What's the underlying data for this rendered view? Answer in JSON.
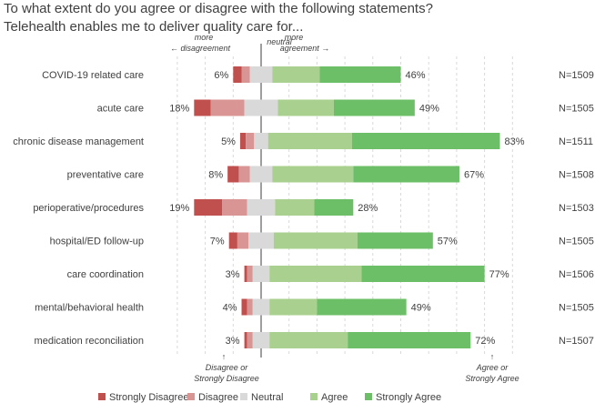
{
  "title_line1": "To what extent do you agree or disagree with the following statements?",
  "title_line2": "Telehealth enables me to deliver quality care for...",
  "annotations": {
    "more_disagreement_1": "more",
    "more_disagreement_2": "← disagreement",
    "neutral": "neutral",
    "more_agreement_1": "more",
    "more_agreement_2": "agreement →",
    "disagree_bottom_1": "Disagree or",
    "disagree_bottom_2": "Strongly Disagree",
    "agree_bottom_1": "Agree or",
    "agree_bottom_2": "Strongly Agree",
    "up_arrow": "↑"
  },
  "colors": {
    "Strongly Disagree": "#c0504d",
    "Disagree": "#d99594",
    "Neutral": "#d9d9d9",
    "Agree": "#a9d08e",
    "Strongly Agree": "#6cbf66"
  },
  "chart_data": {
    "type": "bar",
    "orientation": "horizontal-diverging-stacked",
    "categories": [
      "COVID-19 related care",
      "acute care",
      "chronic disease management",
      "preventative care",
      "perioperative/procedures",
      "hospital/ED follow-up",
      "care coordination",
      "mental/behavioral health",
      "medication reconciliation"
    ],
    "series": [
      {
        "name": "Strongly Disagree",
        "values": [
          3,
          6,
          2,
          4,
          10,
          3,
          1,
          2,
          1
        ]
      },
      {
        "name": "Disagree",
        "values": [
          3,
          12,
          3,
          4,
          9,
          4,
          2,
          2,
          2
        ]
      },
      {
        "name": "Neutral",
        "values": [
          8,
          12,
          5,
          8,
          10,
          9,
          6,
          6,
          6
        ]
      },
      {
        "name": "Agree",
        "values": [
          17,
          20,
          30,
          29,
          14,
          30,
          33,
          17,
          28
        ]
      },
      {
        "name": "Strongly Agree",
        "values": [
          29,
          29,
          53,
          38,
          14,
          27,
          44,
          32,
          44
        ]
      }
    ],
    "disagree_labels": [
      "6%",
      "18%",
      "5%",
      "8%",
      "19%",
      "7%",
      "3%",
      "4%",
      "3%"
    ],
    "agree_labels": [
      "46%",
      "49%",
      "83%",
      "67%",
      "28%",
      "57%",
      "77%",
      "49%",
      "72%"
    ],
    "n_labels": [
      "N=1509",
      "N=1505",
      "N=1511",
      "N=1508",
      "N=1503",
      "N=1505",
      "N=1506",
      "N=1505",
      "N=1507"
    ],
    "legend": [
      "Strongly Disagree",
      "Disagree",
      "Neutral",
      "Agree",
      "Strongly Agree"
    ],
    "legend_position": "bottom",
    "grid": "vertical dashed"
  }
}
